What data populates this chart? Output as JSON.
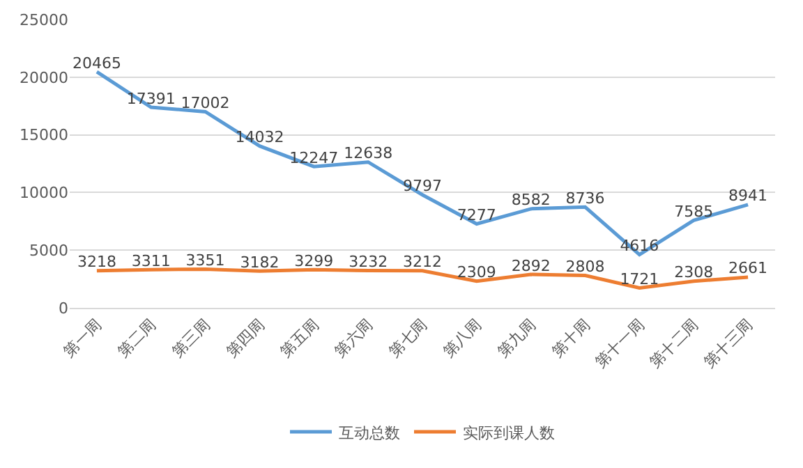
{
  "chart_data": {
    "type": "line",
    "categories": [
      "第一周",
      "第二周",
      "第三周",
      "第四周",
      "第五周",
      "第六周",
      "第七周",
      "第八周",
      "第九周",
      "第十周",
      "第十一周",
      "第十二周",
      "第十三周"
    ],
    "series": [
      {
        "name": "互动总数",
        "color": "#5b9bd5",
        "values": [
          20465,
          17391,
          17002,
          14032,
          12247,
          12638,
          9797,
          7277,
          8582,
          8736,
          4616,
          7585,
          8941
        ]
      },
      {
        "name": "实际到课人数",
        "color": "#ed7d31",
        "values": [
          3218,
          3311,
          3351,
          3182,
          3299,
          3232,
          3212,
          2309,
          2892,
          2808,
          1721,
          2308,
          2661
        ]
      }
    ],
    "ylim": [
      0,
      25000
    ],
    "yticks": [
      0,
      5000,
      10000,
      15000,
      20000,
      25000
    ],
    "grid": "y",
    "legend": "bottom",
    "data_labels": true,
    "marker": "none",
    "line_style": "solid"
  }
}
